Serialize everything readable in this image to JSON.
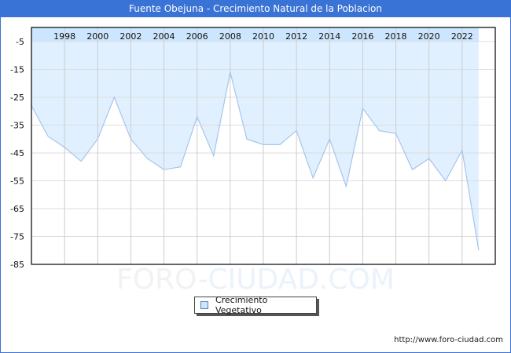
{
  "header": {
    "title": "Fuente Obejuna - Crecimiento Natural de la Poblacion"
  },
  "legend": {
    "label": "Crecimiento Vegetativo",
    "swatch_color": "#cce6ff"
  },
  "watermark": {
    "part1": "FORO-",
    "part2": "CIUDAD.COM"
  },
  "footer": {
    "url": "http://www.foro-ciudad.com"
  },
  "colors": {
    "title_bar": "#3a73d6",
    "area_fill": "#e0f0ff",
    "header_band": "#cce6ff",
    "line": "#a8c4ec",
    "grid": "#dddddd"
  },
  "chart_data": {
    "type": "area",
    "title": "Fuente Obejuna - Crecimiento Natural de la Poblacion",
    "xlabel": "",
    "ylabel": "",
    "x": [
      1996,
      1997,
      1998,
      1999,
      2000,
      2001,
      2002,
      2003,
      2004,
      2005,
      2006,
      2007,
      2008,
      2009,
      2010,
      2011,
      2012,
      2013,
      2014,
      2015,
      2016,
      2017,
      2018,
      2019,
      2020,
      2021,
      2022,
      2023
    ],
    "series": [
      {
        "name": "Crecimiento Vegetativo",
        "values": [
          -28,
          -39,
          -43,
          -48,
          -40,
          -25,
          -40,
          -47,
          -51,
          -50,
          -32,
          -46,
          -16,
          -40,
          -42,
          -42,
          -37,
          -54,
          -40,
          -57,
          -29,
          -37,
          -38,
          -51,
          -47,
          -55,
          -44,
          -80
        ]
      }
    ],
    "x_tick_labels": [
      "1998",
      "2000",
      "2002",
      "2004",
      "2006",
      "2008",
      "2010",
      "2012",
      "2014",
      "2016",
      "2018",
      "2020",
      "2022"
    ],
    "y_tick_labels": [
      "-5",
      "-15",
      "-25",
      "-35",
      "-45",
      "-55",
      "-65",
      "-75",
      "-85"
    ],
    "ylim": [
      -85,
      -5
    ],
    "xlim": [
      1996,
      2024
    ],
    "grid": true,
    "legend_position": "bottom-center"
  }
}
